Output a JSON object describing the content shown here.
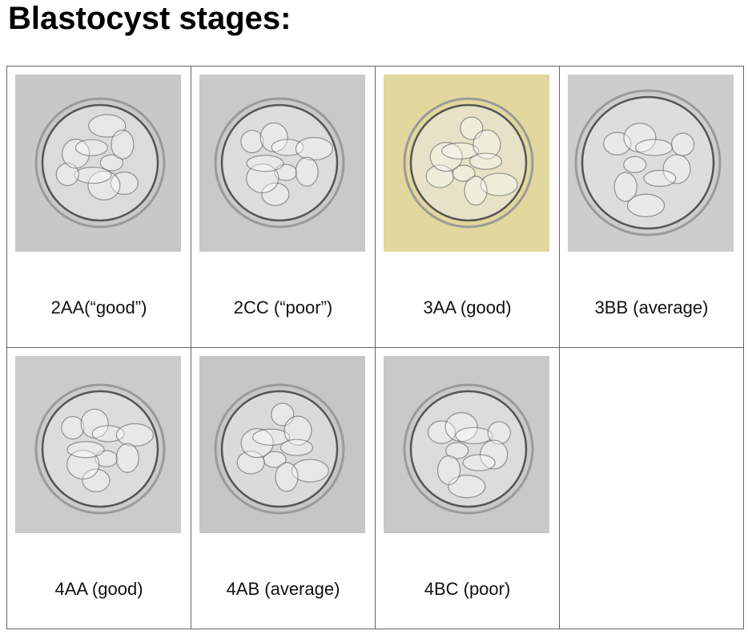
{
  "title": "Blastocyst stages:",
  "table": {
    "rows": [
      [
        "2AA(“good”)",
        "2CC (“poor”)",
        "3AA (good)",
        "3BB (average)"
      ],
      [
        "4AA (good)",
        "4AB (average)",
        "4BC (poor)"
      ]
    ]
  }
}
